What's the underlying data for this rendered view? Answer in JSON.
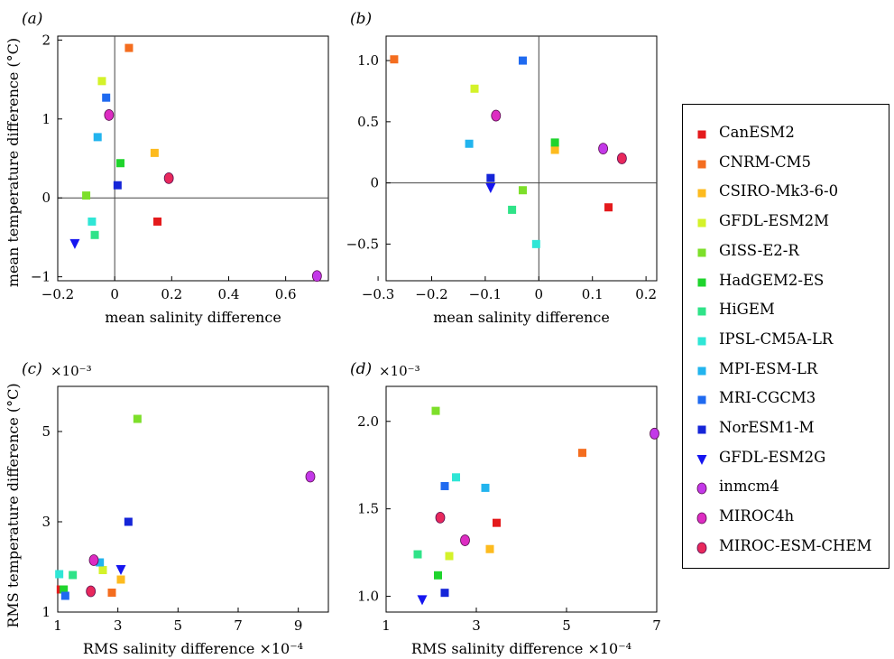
{
  "markers": {
    "CanESM2": {
      "color": "#e41a1c",
      "shape": "square"
    },
    "CNRM-CM5": {
      "color": "#f46d1f",
      "shape": "square"
    },
    "CSIRO-Mk3-6-0": {
      "color": "#fdbb1f",
      "shape": "square"
    },
    "GFDL-ESM2M": {
      "color": "#d4f22a",
      "shape": "square"
    },
    "GISS-E2-R": {
      "color": "#7ddf2a",
      "shape": "square"
    },
    "HadGEM2-ES": {
      "color": "#1fd42d",
      "shape": "square"
    },
    "HiGEM": {
      "color": "#2fe388",
      "shape": "square"
    },
    "IPSL-CM5A-LR": {
      "color": "#2fe6d6",
      "shape": "square"
    },
    "MPI-ESM-LR": {
      "color": "#22b4ee",
      "shape": "square"
    },
    "MRI-CGCM3": {
      "color": "#1f6af0",
      "shape": "square"
    },
    "NorESM1-M": {
      "color": "#1525d8",
      "shape": "square"
    },
    "GFDL-ESM2G": {
      "color": "#1515f0",
      "shape": "triangle"
    },
    "inmcm4": {
      "color": "#c338e8",
      "shape": "circle"
    },
    "MIROC4h": {
      "color": "#dd2cc2",
      "shape": "circle"
    },
    "MIROC-ESM-CHEM": {
      "color": "#e8285c",
      "shape": "circle"
    }
  },
  "legend": {
    "entries": [
      "CanESM2",
      "CNRM-CM5",
      "CSIRO-Mk3-6-0",
      "GFDL-ESM2M",
      "GISS-E2-R",
      "HadGEM2-ES",
      "HiGEM",
      "IPSL-CM5A-LR",
      "MPI-ESM-LR",
      "MRI-CGCM3",
      "NorESM1-M",
      "GFDL-ESM2G",
      "inmcm4",
      "MIROC4h",
      "MIROC-ESM-CHEM"
    ]
  },
  "shared_labels": {
    "mean_temp_ylabel": "mean temperature difference (°C)",
    "rms_temp_ylabel": "RMS temperature difference (°C)"
  },
  "chart_data": [
    {
      "type": "scatter",
      "panel_label": "(a)",
      "xlabel": "mean salinity difference",
      "ylabel": "mean temperature difference (°C)",
      "xlim": [
        -0.2,
        0.75
      ],
      "ylim": [
        -1.05,
        2.05
      ],
      "xticks": [
        -0.2,
        0,
        0.2,
        0.4,
        0.6
      ],
      "xtick_labels": [
        "−0.2",
        "0",
        "0.2",
        "0.4",
        "0.6"
      ],
      "yticks": [
        -1,
        0,
        1,
        2
      ],
      "ytick_labels": [
        "−1",
        "0",
        "1",
        "2"
      ],
      "zero_lines": true,
      "exponent_label": "",
      "points": [
        {
          "model": "CanESM2",
          "x": 0.15,
          "y": -0.3
        },
        {
          "model": "CNRM-CM5",
          "x": 0.05,
          "y": 1.9
        },
        {
          "model": "CSIRO-Mk3-6-0",
          "x": 0.14,
          "y": 0.57
        },
        {
          "model": "GFDL-ESM2M",
          "x": -0.045,
          "y": 1.48
        },
        {
          "model": "GISS-E2-R",
          "x": -0.1,
          "y": 0.03
        },
        {
          "model": "HadGEM2-ES",
          "x": 0.02,
          "y": 0.44
        },
        {
          "model": "HiGEM",
          "x": -0.07,
          "y": -0.47
        },
        {
          "model": "IPSL-CM5A-LR",
          "x": -0.08,
          "y": -0.3
        },
        {
          "model": "MPI-ESM-LR",
          "x": -0.06,
          "y": 0.77
        },
        {
          "model": "MRI-CGCM3",
          "x": -0.03,
          "y": 1.27
        },
        {
          "model": "NorESM1-M",
          "x": 0.01,
          "y": 0.16
        },
        {
          "model": "GFDL-ESM2G",
          "x": -0.14,
          "y": -0.58
        },
        {
          "model": "inmcm4",
          "x": 0.71,
          "y": -0.99
        },
        {
          "model": "MIROC4h",
          "x": -0.02,
          "y": 1.05
        },
        {
          "model": "MIROC-ESM-CHEM",
          "x": 0.19,
          "y": 0.25
        }
      ]
    },
    {
      "type": "scatter",
      "panel_label": "(b)",
      "xlabel": "mean salinity difference",
      "ylabel": "",
      "xlim": [
        -0.285,
        0.22
      ],
      "ylim": [
        -0.8,
        1.2
      ],
      "xticks": [
        -0.3,
        -0.2,
        -0.1,
        0,
        0.1,
        0.2
      ],
      "xtick_labels": [
        "−0.3",
        "−0.2",
        "−0.1",
        "0",
        "0.1",
        "0.2"
      ],
      "yticks": [
        -0.5,
        0,
        0.5,
        1.0
      ],
      "ytick_labels": [
        "−0.5",
        "0",
        "0.5",
        "1.0"
      ],
      "zero_lines": true,
      "exponent_label": "",
      "points": [
        {
          "model": "CanESM2",
          "x": 0.13,
          "y": -0.2
        },
        {
          "model": "CNRM-CM5",
          "x": -0.27,
          "y": 1.01
        },
        {
          "model": "CSIRO-Mk3-6-0",
          "x": 0.03,
          "y": 0.27
        },
        {
          "model": "GFDL-ESM2M",
          "x": -0.12,
          "y": 0.77
        },
        {
          "model": "GISS-E2-R",
          "x": -0.03,
          "y": -0.06
        },
        {
          "model": "HadGEM2-ES",
          "x": 0.03,
          "y": 0.33
        },
        {
          "model": "HiGEM",
          "x": -0.05,
          "y": -0.22
        },
        {
          "model": "IPSL-CM5A-LR",
          "x": -0.005,
          "y": -0.5
        },
        {
          "model": "MPI-ESM-LR",
          "x": -0.13,
          "y": 0.32
        },
        {
          "model": "MRI-CGCM3",
          "x": -0.03,
          "y": 1.0
        },
        {
          "model": "NorESM1-M",
          "x": -0.09,
          "y": 0.04
        },
        {
          "model": "GFDL-ESM2G",
          "x": -0.09,
          "y": -0.04
        },
        {
          "model": "inmcm4",
          "x": 0.12,
          "y": 0.28
        },
        {
          "model": "MIROC4h",
          "x": -0.08,
          "y": 0.55
        },
        {
          "model": "MIROC-ESM-CHEM",
          "x": 0.155,
          "y": 0.2
        }
      ]
    },
    {
      "type": "scatter",
      "panel_label": "(c)",
      "xlabel": "RMS salinity difference ×10⁻⁴",
      "ylabel": "RMS temperature difference (°C)",
      "xlim": [
        1,
        10
      ],
      "ylim": [
        1,
        6
      ],
      "xticks": [
        1,
        3,
        5,
        7,
        9
      ],
      "xtick_labels": [
        "1",
        "3",
        "5",
        "7",
        "9"
      ],
      "yticks": [
        1,
        3,
        5
      ],
      "ytick_labels": [
        "1",
        "3",
        "5"
      ],
      "zero_lines": false,
      "exponent_label": "×10⁻³",
      "points": [
        {
          "model": "CanESM2",
          "x": 1.1,
          "y": 1.5
        },
        {
          "model": "CNRM-CM5",
          "x": 2.8,
          "y": 1.43
        },
        {
          "model": "CSIRO-Mk3-6-0",
          "x": 3.1,
          "y": 1.72
        },
        {
          "model": "GFDL-ESM2M",
          "x": 2.5,
          "y": 1.93
        },
        {
          "model": "GISS-E2-R",
          "x": 3.65,
          "y": 5.28
        },
        {
          "model": "HadGEM2-ES",
          "x": 1.2,
          "y": 1.5
        },
        {
          "model": "HiGEM",
          "x": 1.5,
          "y": 1.82
        },
        {
          "model": "IPSL-CM5A-LR",
          "x": 1.05,
          "y": 1.84
        },
        {
          "model": "MPI-ESM-LR",
          "x": 2.4,
          "y": 2.1
        },
        {
          "model": "MRI-CGCM3",
          "x": 1.25,
          "y": 1.36
        },
        {
          "model": "NorESM1-M",
          "x": 3.35,
          "y": 3.0
        },
        {
          "model": "GFDL-ESM2G",
          "x": 3.1,
          "y": 1.94
        },
        {
          "model": "inmcm4",
          "x": 9.4,
          "y": 4.0
        },
        {
          "model": "MIROC4h",
          "x": 2.2,
          "y": 2.15
        },
        {
          "model": "MIROC-ESM-CHEM",
          "x": 2.1,
          "y": 1.46
        }
      ]
    },
    {
      "type": "scatter",
      "panel_label": "(d)",
      "xlabel": "RMS salinity difference ×10⁻⁴",
      "ylabel": "",
      "xlim": [
        1,
        7
      ],
      "ylim": [
        0.91,
        2.2
      ],
      "xticks": [
        1,
        3,
        5,
        7
      ],
      "xtick_labels": [
        "1",
        "3",
        "5",
        "7"
      ],
      "yticks": [
        1.0,
        1.5,
        2.0
      ],
      "ytick_labels": [
        "1.0",
        "1.5",
        "2.0"
      ],
      "zero_lines": false,
      "exponent_label": "×10⁻³",
      "points": [
        {
          "model": "CanESM2",
          "x": 3.45,
          "y": 1.42
        },
        {
          "model": "CNRM-CM5",
          "x": 5.35,
          "y": 1.82
        },
        {
          "model": "CSIRO-Mk3-6-0",
          "x": 3.3,
          "y": 1.27
        },
        {
          "model": "GFDL-ESM2M",
          "x": 2.4,
          "y": 1.23
        },
        {
          "model": "GISS-E2-R",
          "x": 2.1,
          "y": 2.06
        },
        {
          "model": "HadGEM2-ES",
          "x": 2.15,
          "y": 1.12
        },
        {
          "model": "HiGEM",
          "x": 1.7,
          "y": 1.24
        },
        {
          "model": "IPSL-CM5A-LR",
          "x": 2.55,
          "y": 1.68
        },
        {
          "model": "MPI-ESM-LR",
          "x": 3.2,
          "y": 1.62
        },
        {
          "model": "MRI-CGCM3",
          "x": 2.3,
          "y": 1.63
        },
        {
          "model": "NorESM1-M",
          "x": 2.3,
          "y": 1.02
        },
        {
          "model": "GFDL-ESM2G",
          "x": 1.8,
          "y": 0.98
        },
        {
          "model": "inmcm4",
          "x": 6.95,
          "y": 1.93
        },
        {
          "model": "MIROC4h",
          "x": 2.75,
          "y": 1.32
        },
        {
          "model": "MIROC-ESM-CHEM",
          "x": 2.2,
          "y": 1.45
        }
      ]
    }
  ]
}
